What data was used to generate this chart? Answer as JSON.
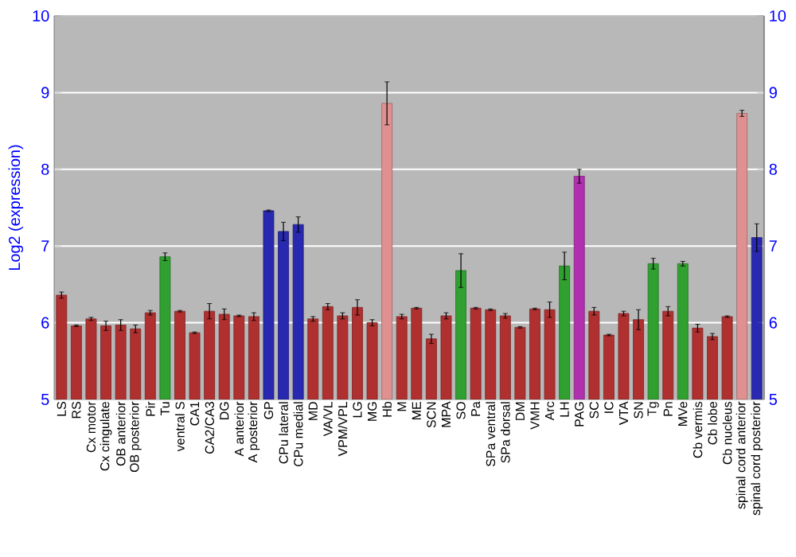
{
  "chart_data": {
    "type": "bar",
    "ylabel": "Log2 (expression)",
    "categories": [
      "LS",
      "RS",
      "Cx motor",
      "Cx cingulate",
      "OB anterior",
      "OB posterior",
      "Pir",
      "Tu",
      "ventral S",
      "CA1",
      "CA2/CA3",
      "DG",
      "A anterior",
      "A posterior",
      "GP",
      "CPu lateral",
      "CPu medial",
      "MD",
      "VA/VL",
      "VPM/VPL",
      "LG",
      "MG",
      "Hb",
      "M",
      "ME",
      "SCN",
      "MPA",
      "SO",
      "Pa",
      "SPa ventral",
      "SPa dorsal",
      "DM",
      "VMH",
      "Arc",
      "LH",
      "PAG",
      "SC",
      "IC",
      "VTA",
      "SN",
      "Tg",
      "Pn",
      "MVe",
      "Cb vermis",
      "Cb lobe",
      "Cb nucleus",
      "spinal cord anterior",
      "spinal cord posterior"
    ],
    "values": [
      6.36,
      5.96,
      6.05,
      5.96,
      5.97,
      5.92,
      6.13,
      6.86,
      6.15,
      5.87,
      6.15,
      6.11,
      6.09,
      6.08,
      7.46,
      7.19,
      7.28,
      6.05,
      6.21,
      6.09,
      6.2,
      6.0,
      8.86,
      6.08,
      6.19,
      5.79,
      6.09,
      6.68,
      6.19,
      6.17,
      6.09,
      5.94,
      6.18,
      6.17,
      6.74,
      7.91,
      6.15,
      5.84,
      6.12,
      6.04,
      6.77,
      6.15,
      6.77,
      5.93,
      5.82,
      6.08,
      8.73,
      7.11
    ],
    "errors": [
      0.04,
      0.01,
      0.02,
      0.06,
      0.07,
      0.05,
      0.03,
      0.05,
      0.01,
      0.01,
      0.1,
      0.07,
      0.01,
      0.05,
      0.01,
      0.12,
      0.1,
      0.03,
      0.04,
      0.04,
      0.1,
      0.04,
      0.28,
      0.03,
      0.01,
      0.06,
      0.04,
      0.22,
      0.01,
      0.01,
      0.03,
      0.01,
      0.01,
      0.1,
      0.18,
      0.09,
      0.05,
      0.01,
      0.03,
      0.13,
      0.07,
      0.06,
      0.03,
      0.05,
      0.04,
      0.01,
      0.04,
      0.18
    ],
    "colors": [
      "#b03030",
      "#b03030",
      "#b03030",
      "#b03030",
      "#b03030",
      "#b03030",
      "#b03030",
      "#30a030",
      "#b03030",
      "#b03030",
      "#b03030",
      "#b03030",
      "#b03030",
      "#b03030",
      "#2828b0",
      "#2828b0",
      "#2828b0",
      "#b03030",
      "#b03030",
      "#b03030",
      "#b03030",
      "#b03030",
      "#e09090",
      "#b03030",
      "#b03030",
      "#b03030",
      "#b03030",
      "#30a030",
      "#b03030",
      "#b03030",
      "#b03030",
      "#b03030",
      "#b03030",
      "#b03030",
      "#30a030",
      "#b030b0",
      "#b03030",
      "#b03030",
      "#b03030",
      "#b03030",
      "#30a030",
      "#b03030",
      "#30a030",
      "#b03030",
      "#b03030",
      "#b03030",
      "#e09090",
      "#2828b0"
    ],
    "ylim": [
      5,
      10
    ],
    "yticks": [
      5,
      6,
      7,
      8,
      9,
      10
    ],
    "y2lim": [
      5,
      10
    ],
    "y2ticks": [
      5,
      6,
      7,
      8,
      9,
      10
    ],
    "grid": "y"
  }
}
